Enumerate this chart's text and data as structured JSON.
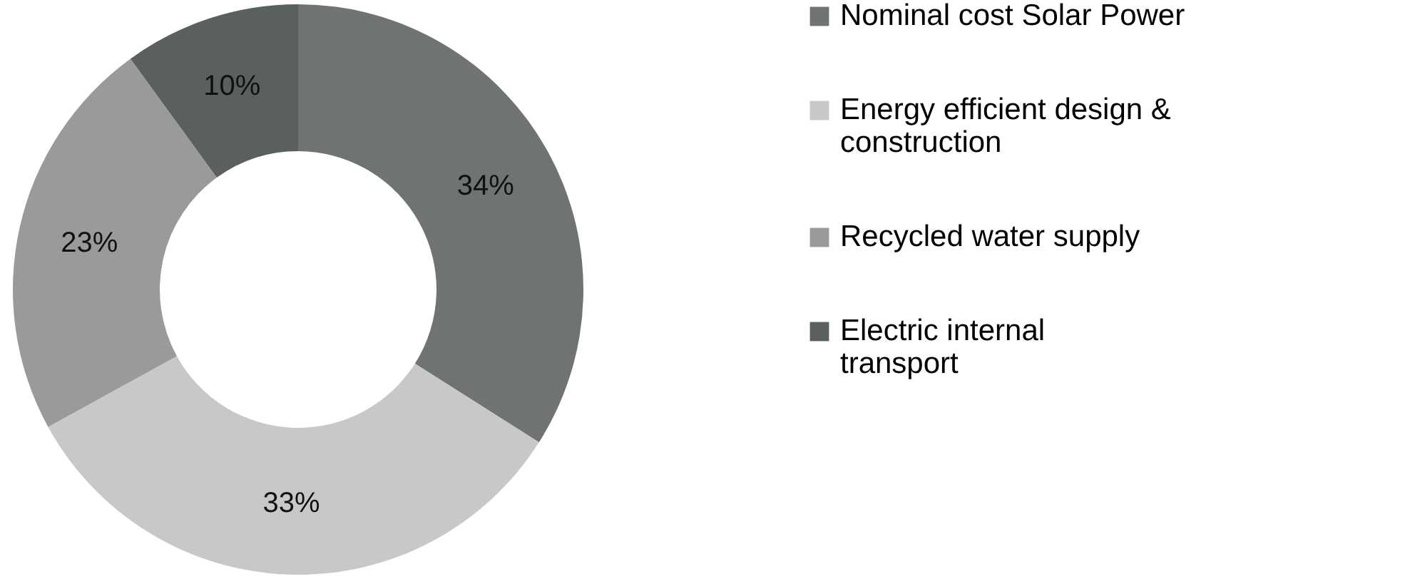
{
  "chart_data": {
    "type": "donut",
    "categories": [
      "Nominal cost Solar Power",
      "Energy efficient design & construction",
      "Recycled water supply",
      "Electric internal transport"
    ],
    "values": [
      34,
      33,
      23,
      10
    ],
    "colors": [
      "#707373",
      "#c8c8c8",
      "#9a9a9a",
      "#59605f"
    ],
    "value_labels": [
      "34%",
      "33%",
      "23%",
      "10%"
    ],
    "legend": "right"
  }
}
